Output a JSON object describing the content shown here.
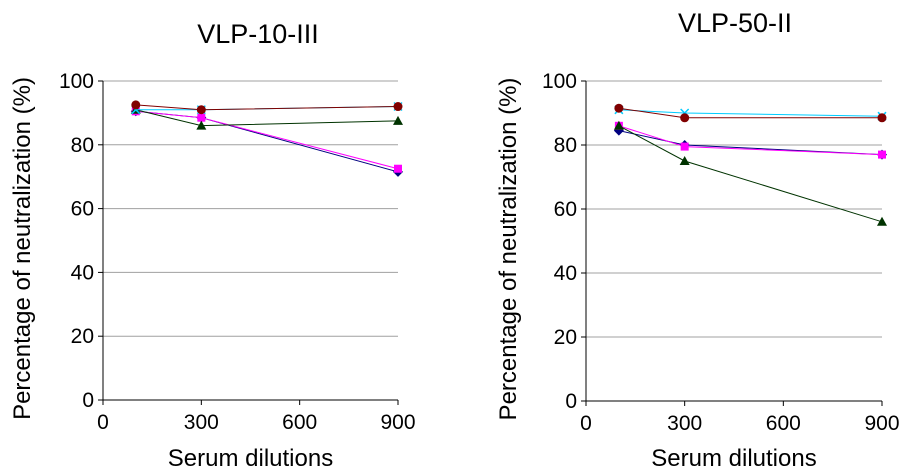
{
  "chart_data": [
    {
      "type": "line",
      "title": "VLP-10-III",
      "xlabel": "Serum dilutions",
      "ylabel": "Percentage of neutralization (%)",
      "xlim": [
        0,
        900
      ],
      "ylim": [
        0,
        100
      ],
      "xticks": [
        0,
        300,
        600,
        900
      ],
      "yticks": [
        0,
        20,
        40,
        60,
        80,
        100
      ],
      "grid": "horizontal",
      "x": [
        100,
        300,
        900
      ],
      "series": [
        {
          "values": [
            90.5,
            88.5,
            71.5
          ],
          "color": "#000080",
          "marker": "diamond"
        },
        {
          "values": [
            90.5,
            88.5,
            72.5
          ],
          "color": "#ff00ff",
          "marker": "square"
        },
        {
          "values": [
            91,
            86,
            87.5
          ],
          "color": "#003300",
          "marker": "triangle"
        },
        {
          "values": [
            91,
            91,
            92
          ],
          "color": "#00ccff",
          "marker": "x"
        },
        {
          "values": [
            92.5,
            91,
            92
          ],
          "color": "#800000",
          "marker": "circle"
        }
      ]
    },
    {
      "type": "line",
      "title": "VLP-50-II",
      "xlabel": "Serum dilutions",
      "ylabel": "Percentage of neutralization (%)",
      "xlim": [
        0,
        900
      ],
      "ylim": [
        0,
        100
      ],
      "xticks": [
        0,
        300,
        600,
        900
      ],
      "yticks": [
        0,
        20,
        40,
        60,
        80,
        100
      ],
      "grid": "horizontal",
      "x": [
        100,
        300,
        900
      ],
      "series": [
        {
          "values": [
            84.5,
            80,
            77
          ],
          "color": "#000080",
          "marker": "diamond"
        },
        {
          "values": [
            86,
            79.5,
            77
          ],
          "color": "#ff00ff",
          "marker": "square"
        },
        {
          "values": [
            86,
            75,
            56
          ],
          "color": "#003300",
          "marker": "triangle"
        },
        {
          "values": [
            91,
            90,
            89
          ],
          "color": "#00ccff",
          "marker": "x"
        },
        {
          "values": [
            91.5,
            88.5,
            88.5
          ],
          "color": "#800000",
          "marker": "circle"
        }
      ]
    }
  ]
}
